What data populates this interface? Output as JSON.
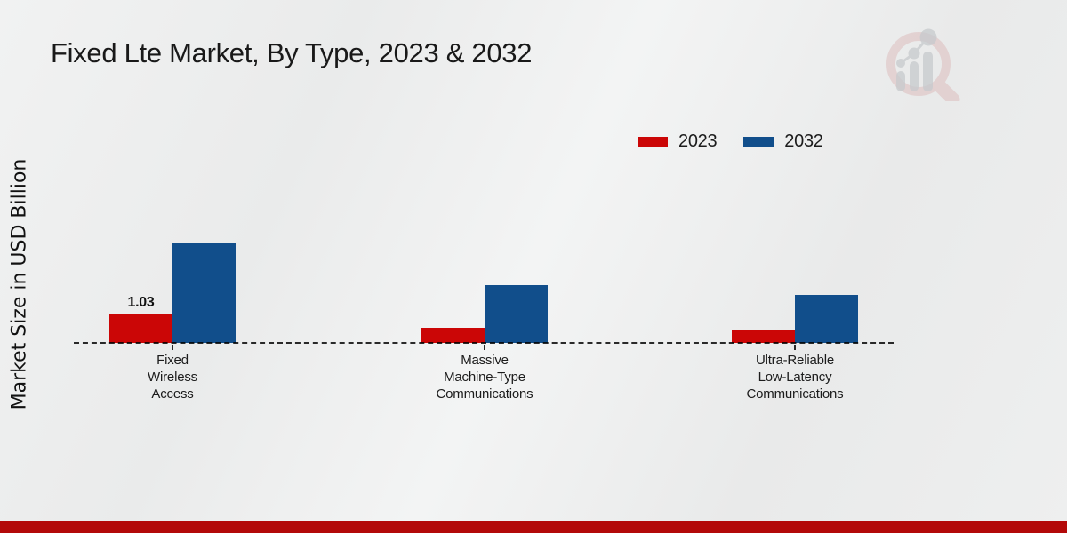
{
  "page": {
    "background_color": "#ededee",
    "footer_bar_color": "#b30909",
    "logo_name": "magnifier-bar-chart-watermark-logo"
  },
  "chart_data": {
    "type": "bar",
    "title": "Fixed Lte Market, By Type, 2023 & 2032",
    "ylabel": "Market Size in USD Billion",
    "xlabel": "",
    "categories": [
      "Fixed Wireless Access",
      "Massive Machine-Type Communications",
      "Ultra-Reliable Low-Latency Communications"
    ],
    "category_label_lines": [
      [
        "Fixed",
        "Wireless",
        "Access"
      ],
      [
        "Massive",
        "Machine-Type",
        "Communications"
      ],
      [
        "Ultra-Reliable",
        "Low-Latency",
        "Communications"
      ]
    ],
    "series": [
      {
        "name": "2023",
        "color": "#cb0606",
        "values": [
          1.03,
          0.53,
          0.44
        ],
        "value_labels": [
          "1.03",
          "",
          ""
        ]
      },
      {
        "name": "2032",
        "color": "#114e8b",
        "values": [
          3.5,
          2.03,
          1.69
        ],
        "value_labels": [
          "",
          "",
          ""
        ]
      }
    ],
    "ylim": [
      0,
      4
    ],
    "grid": false,
    "legend_position": "top-right",
    "baseline_style": "dashed"
  }
}
